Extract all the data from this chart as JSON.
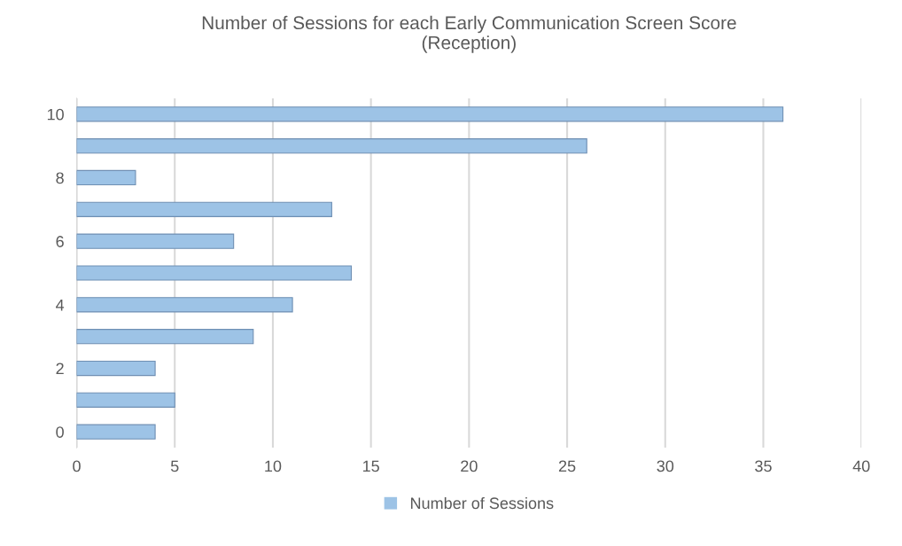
{
  "chart_data": {
    "type": "bar",
    "orientation": "horizontal",
    "title": "Number of Sessions for each Early Communication Screen Score\n(Reception)",
    "categories": [
      "10",
      null,
      "8",
      null,
      "6",
      null,
      "4",
      null,
      "2",
      null,
      "0"
    ],
    "series": [
      {
        "name": "Number of Sessions",
        "color": "#9dc3e6",
        "values": [
          36,
          26,
          3,
          13,
          8,
          14,
          11,
          9,
          4,
          5,
          4
        ]
      }
    ],
    "xlim": [
      0,
      40
    ],
    "xticks": [
      0,
      5,
      10,
      15,
      20,
      25,
      30,
      35,
      40
    ],
    "grid": "x",
    "legend": "bottom"
  }
}
